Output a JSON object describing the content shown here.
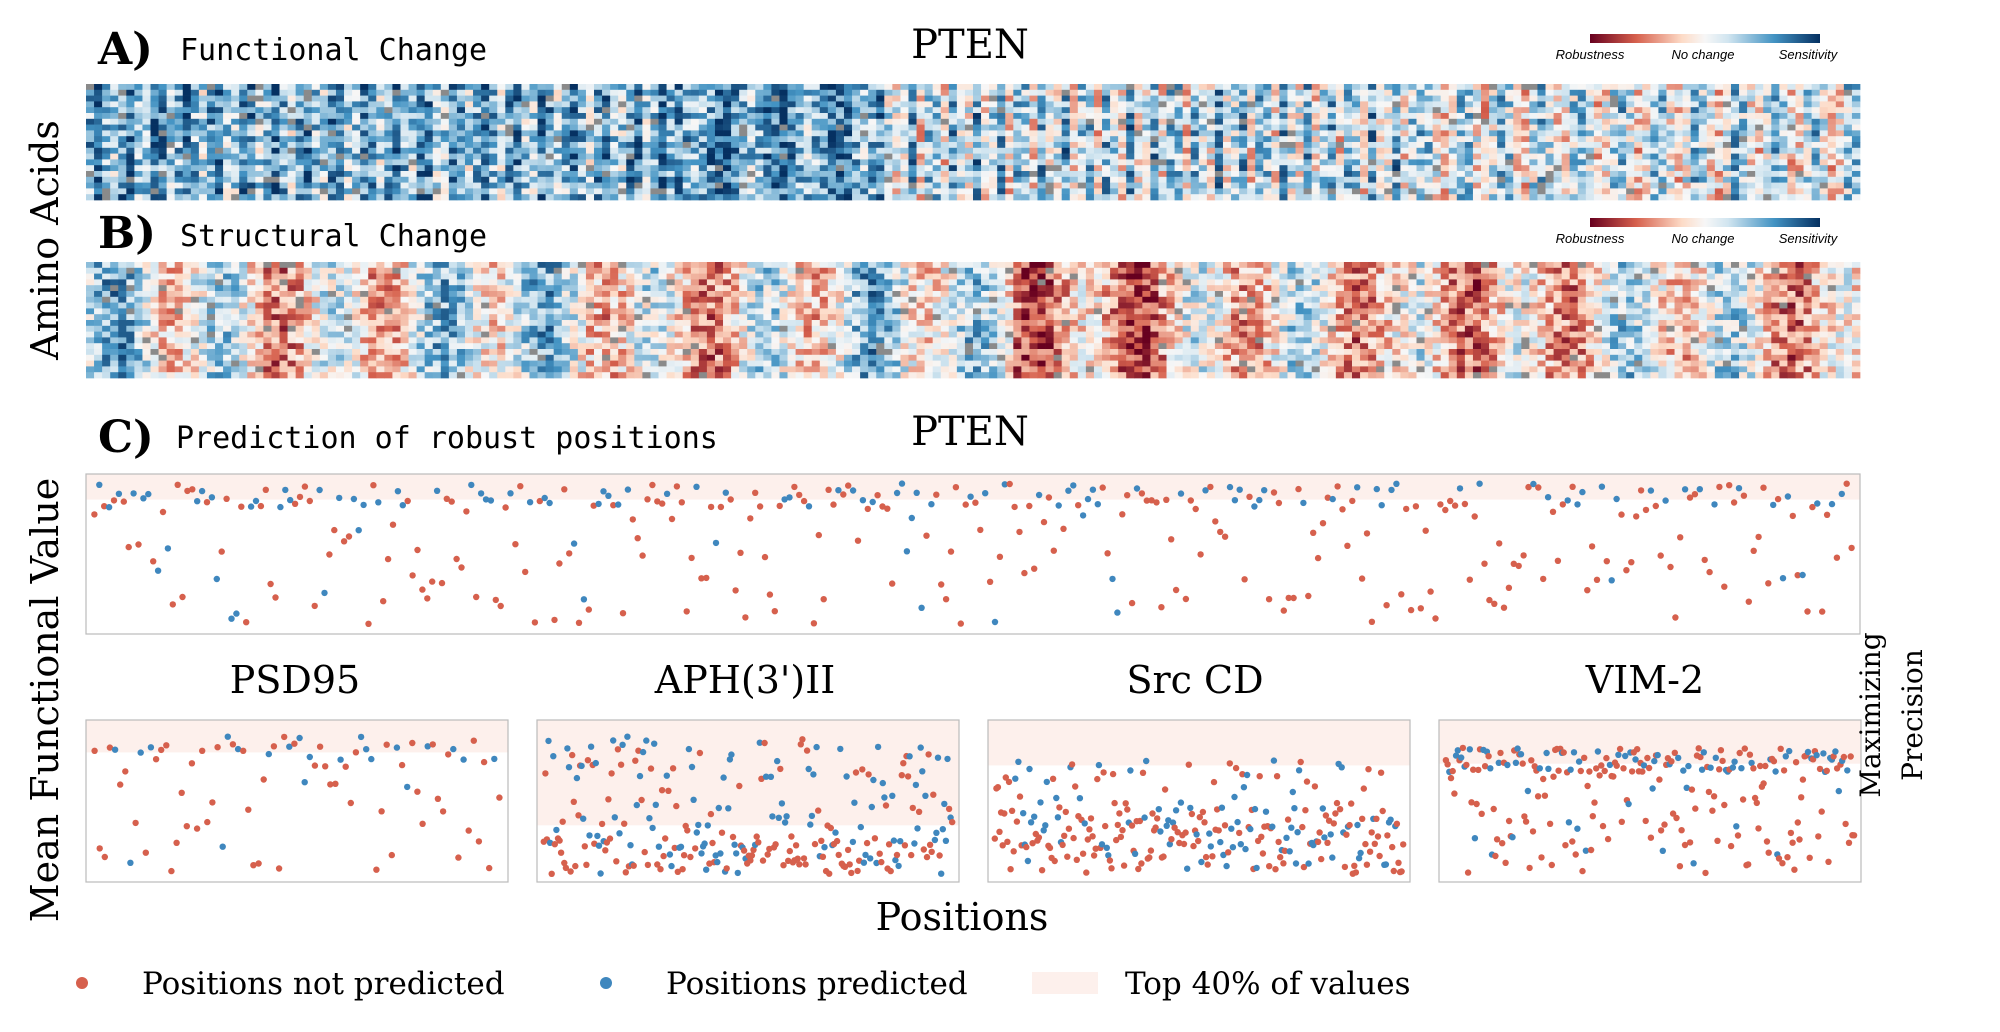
{
  "panelA": {
    "letter": "A)",
    "subtitle": "Functional Change",
    "title": "PTEN",
    "cbar_labels": [
      "Robustness",
      "No change",
      "Sensitivity"
    ]
  },
  "panelB": {
    "letter": "B)",
    "subtitle": "Structural Change",
    "cbar_labels": [
      "Robustness",
      "No change",
      "Sensitivity"
    ]
  },
  "heatmap_ylabel": "Amino Acids",
  "panelC": {
    "letter": "C)",
    "subtitle": "Prediction of robust positions",
    "title": "PTEN"
  },
  "small_titles": [
    "PSD95",
    "APH(3')II",
    "Src CD",
    "VIM-2"
  ],
  "ylabel": "Mean Functional Value",
  "xlabel": "Positions",
  "side_label": [
    "Maximizing",
    "Precision"
  ],
  "legend": {
    "not_predicted": "Positions not predicted",
    "predicted": "Positions predicted",
    "top": "Top 40% of values"
  },
  "colors": {
    "not_predicted": "#d6604d",
    "predicted": "#3f87be",
    "top_band": "#fdf0ec",
    "axes": "#bbbbbb",
    "cmap_neg": "#67001f",
    "cmap_mid": "#f7f7f7",
    "cmap_pos": "#053061"
  },
  "chart_data": [
    {
      "type": "heatmap",
      "name": "Functional Change",
      "title": "PTEN",
      "rows": 20,
      "cols": 403,
      "colorbar": [
        "Robustness",
        "No change",
        "Sensitivity"
      ],
      "value_range": [
        -1,
        1
      ]
    },
    {
      "type": "heatmap",
      "name": "Structural Change",
      "rows": 20,
      "cols": 403,
      "colorbar": [
        "Robustness",
        "No change",
        "Sensitivity"
      ],
      "value_range": [
        -1,
        1
      ]
    },
    {
      "type": "scatter",
      "title": "PTEN",
      "n_points": 360,
      "top_threshold": 0.84,
      "ylim": [
        0,
        1
      ],
      "series": [
        "Positions not predicted",
        "Positions predicted"
      ]
    },
    {
      "type": "scatter",
      "title": "PSD95",
      "n_points": 80,
      "top_threshold": 0.8,
      "ylim": [
        0,
        1
      ]
    },
    {
      "type": "scatter",
      "title": "APH(3')II",
      "n_points": 260,
      "top_threshold": 0.35,
      "ylim": [
        0,
        1
      ]
    },
    {
      "type": "scatter",
      "title": "Src CD",
      "n_points": 260,
      "top_threshold": 0.72,
      "ylim": [
        0,
        1
      ]
    },
    {
      "type": "scatter",
      "title": "VIM-2",
      "n_points": 240,
      "top_threshold": 0.73,
      "ylim": [
        0,
        1
      ]
    }
  ]
}
